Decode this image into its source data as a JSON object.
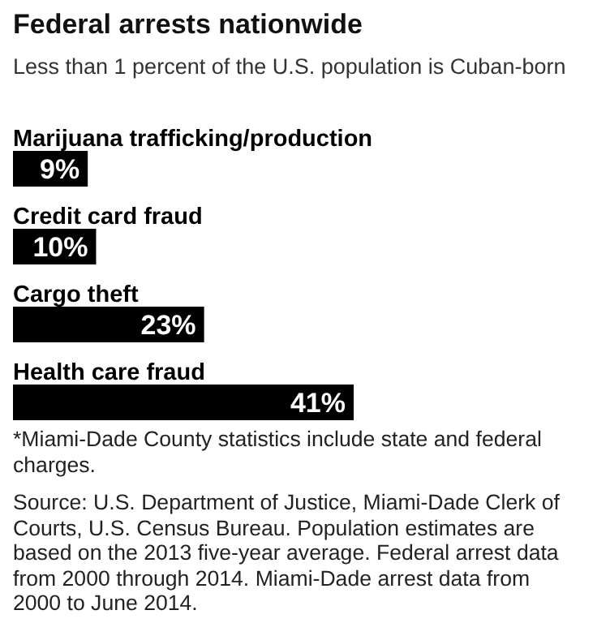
{
  "chart_data": {
    "type": "bar",
    "orientation": "horizontal",
    "title": "Federal arrests nationwide",
    "subtitle": "Less than 1 percent of the U.S. population is Cuban-born",
    "categories": [
      "Marijuana trafficking/production",
      "Credit card fraud",
      "Cargo theft",
      "Health care fraud"
    ],
    "values": [
      9,
      10,
      23,
      41
    ],
    "color": "#000000",
    "value_labels": [
      "9%",
      "10%",
      "23%",
      "41%"
    ],
    "annotations": [
      "*Miami-Dade County statistics include state and federal charges.",
      "Source: U.S. Department of Justice, Miami-Dade Clerk of Courts, U.S. Census Bureau. Population estimates are based on the 2013 five-year average. Federal arrest data from 2000 through 2014. Miami-Dade arrest data from 2000 to June 2014."
    ]
  }
}
